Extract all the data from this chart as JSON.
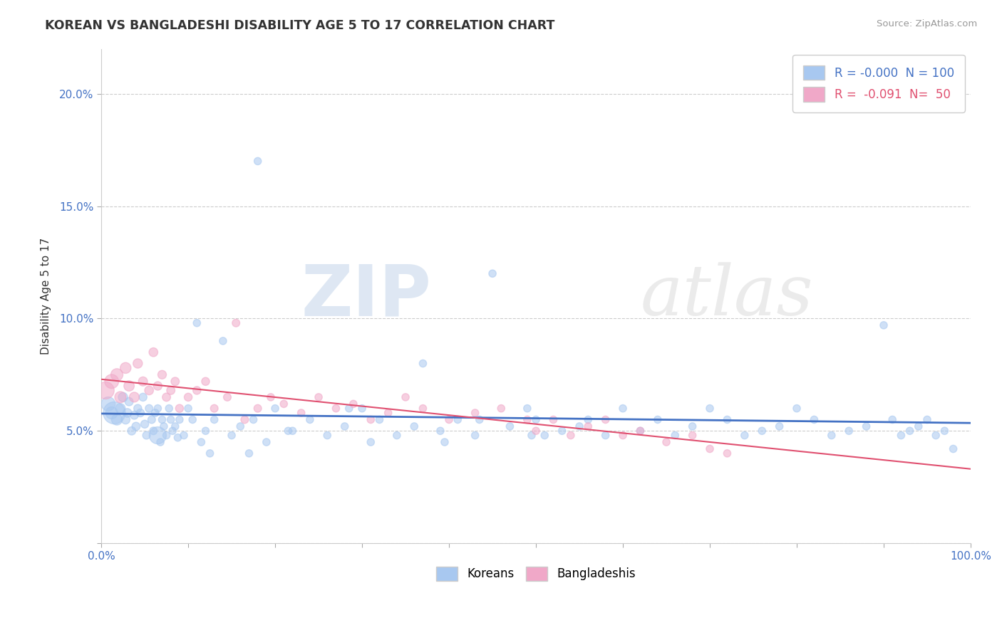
{
  "title": "KOREAN VS BANGLADESHI DISABILITY AGE 5 TO 17 CORRELATION CHART",
  "source_text": "Source: ZipAtlas.com",
  "ylabel": "Disability Age 5 to 17",
  "xlim": [
    0.0,
    1.0
  ],
  "ylim": [
    0.0,
    0.22
  ],
  "xticks": [
    0.0,
    0.1,
    0.2,
    0.3,
    0.4,
    0.5,
    0.6,
    0.7,
    0.8,
    0.9,
    1.0
  ],
  "xticklabels": [
    "0.0%",
    "",
    "",
    "",
    "",
    "",
    "",
    "",
    "",
    "",
    "100.0%"
  ],
  "yticks": [
    0.0,
    0.05,
    0.1,
    0.15,
    0.2
  ],
  "yticklabels": [
    "",
    "5.0%",
    "10.0%",
    "15.0%",
    "20.0%"
  ],
  "korean_color": "#a8c8f0",
  "bangladeshi_color": "#f0a8c8",
  "korean_line_color": "#4472c4",
  "bangladeshi_line_color": "#e05070",
  "korean_R": -0.0,
  "korean_N": 100,
  "bangladeshi_R": -0.091,
  "bangladeshi_N": 50,
  "legend_korean_label": "Koreans",
  "legend_bangladeshi_label": "Bangladeshis",
  "watermark_zip": "ZIP",
  "watermark_atlas": "atlas",
  "background_color": "#ffffff",
  "grid_color": "#cccccc",
  "title_color": "#333333",
  "axis_label_color": "#4472c4",
  "korean_x": [
    0.008,
    0.012,
    0.018,
    0.022,
    0.025,
    0.028,
    0.03,
    0.032,
    0.035,
    0.038,
    0.04,
    0.042,
    0.045,
    0.048,
    0.05,
    0.052,
    0.055,
    0.058,
    0.06,
    0.062,
    0.065,
    0.068,
    0.07,
    0.072,
    0.075,
    0.078,
    0.08,
    0.082,
    0.085,
    0.088,
    0.09,
    0.095,
    0.1,
    0.105,
    0.11,
    0.115,
    0.12,
    0.13,
    0.14,
    0.15,
    0.16,
    0.17,
    0.18,
    0.19,
    0.2,
    0.22,
    0.24,
    0.26,
    0.28,
    0.3,
    0.32,
    0.34,
    0.36,
    0.37,
    0.39,
    0.41,
    0.43,
    0.45,
    0.47,
    0.49,
    0.5,
    0.51,
    0.53,
    0.55,
    0.56,
    0.58,
    0.6,
    0.62,
    0.64,
    0.66,
    0.68,
    0.7,
    0.72,
    0.74,
    0.76,
    0.78,
    0.8,
    0.82,
    0.84,
    0.86,
    0.88,
    0.9,
    0.91,
    0.92,
    0.93,
    0.94,
    0.95,
    0.96,
    0.97,
    0.98,
    0.285,
    0.175,
    0.395,
    0.495,
    0.125,
    0.215,
    0.31,
    0.435,
    0.015,
    0.065
  ],
  "korean_y": [
    0.062,
    0.058,
    0.055,
    0.06,
    0.065,
    0.055,
    0.058,
    0.063,
    0.05,
    0.057,
    0.052,
    0.06,
    0.058,
    0.065,
    0.053,
    0.048,
    0.06,
    0.055,
    0.05,
    0.058,
    0.06,
    0.045,
    0.055,
    0.052,
    0.048,
    0.06,
    0.055,
    0.05,
    0.052,
    0.047,
    0.055,
    0.048,
    0.06,
    0.055,
    0.098,
    0.045,
    0.05,
    0.055,
    0.09,
    0.048,
    0.052,
    0.04,
    0.17,
    0.045,
    0.06,
    0.05,
    0.055,
    0.048,
    0.052,
    0.06,
    0.055,
    0.048,
    0.052,
    0.08,
    0.05,
    0.055,
    0.048,
    0.12,
    0.052,
    0.06,
    0.055,
    0.048,
    0.05,
    0.052,
    0.055,
    0.048,
    0.06,
    0.05,
    0.055,
    0.048,
    0.052,
    0.06,
    0.055,
    0.048,
    0.05,
    0.052,
    0.06,
    0.055,
    0.048,
    0.05,
    0.052,
    0.097,
    0.055,
    0.048,
    0.05,
    0.052,
    0.055,
    0.048,
    0.05,
    0.042,
    0.06,
    0.055,
    0.045,
    0.048,
    0.04,
    0.05,
    0.045,
    0.055,
    0.058,
    0.048
  ],
  "korean_size": [
    200,
    150,
    120,
    100,
    90,
    80,
    80,
    70,
    70,
    70,
    70,
    65,
    65,
    65,
    65,
    60,
    60,
    60,
    60,
    60,
    55,
    55,
    55,
    55,
    55,
    55,
    55,
    55,
    55,
    55,
    55,
    55,
    55,
    55,
    55,
    55,
    55,
    55,
    55,
    55,
    55,
    55,
    55,
    55,
    55,
    55,
    55,
    55,
    55,
    55,
    55,
    55,
    55,
    55,
    55,
    55,
    55,
    55,
    55,
    55,
    55,
    55,
    55,
    55,
    55,
    55,
    55,
    55,
    55,
    55,
    55,
    55,
    55,
    55,
    55,
    55,
    55,
    55,
    55,
    55,
    55,
    55,
    55,
    55,
    55,
    55,
    55,
    55,
    55,
    55,
    55,
    55,
    55,
    55,
    55,
    55,
    55,
    55,
    500,
    300
  ],
  "bangladeshi_x": [
    0.005,
    0.012,
    0.018,
    0.022,
    0.028,
    0.032,
    0.038,
    0.042,
    0.048,
    0.055,
    0.06,
    0.065,
    0.07,
    0.075,
    0.08,
    0.085,
    0.09,
    0.1,
    0.11,
    0.12,
    0.13,
    0.145,
    0.155,
    0.165,
    0.18,
    0.195,
    0.21,
    0.23,
    0.25,
    0.27,
    0.29,
    0.31,
    0.33,
    0.35,
    0.37,
    0.4,
    0.43,
    0.46,
    0.49,
    0.5,
    0.52,
    0.54,
    0.56,
    0.58,
    0.6,
    0.62,
    0.65,
    0.68,
    0.7,
    0.72
  ],
  "bangladeshi_y": [
    0.068,
    0.072,
    0.075,
    0.065,
    0.078,
    0.07,
    0.065,
    0.08,
    0.072,
    0.068,
    0.085,
    0.07,
    0.075,
    0.065,
    0.068,
    0.072,
    0.06,
    0.065,
    0.068,
    0.072,
    0.06,
    0.065,
    0.098,
    0.055,
    0.06,
    0.065,
    0.062,
    0.058,
    0.065,
    0.06,
    0.062,
    0.055,
    0.058,
    0.065,
    0.06,
    0.055,
    0.058,
    0.06,
    0.055,
    0.05,
    0.055,
    0.048,
    0.052,
    0.055,
    0.048,
    0.05,
    0.045,
    0.048,
    0.042,
    0.04
  ],
  "bangladeshi_size": [
    300,
    200,
    150,
    130,
    120,
    110,
    100,
    90,
    85,
    80,
    80,
    75,
    75,
    70,
    70,
    70,
    65,
    65,
    65,
    65,
    60,
    60,
    60,
    60,
    60,
    55,
    55,
    55,
    55,
    55,
    55,
    55,
    55,
    55,
    55,
    55,
    55,
    55,
    55,
    55,
    55,
    55,
    55,
    55,
    55,
    55,
    55,
    55,
    55,
    55
  ]
}
